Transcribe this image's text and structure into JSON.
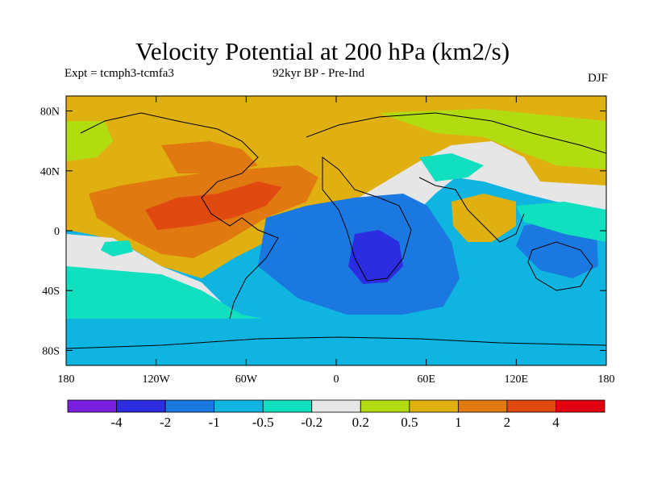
{
  "title": "Velocity Potential at 200 hPa (km2/s)",
  "subtitle_left": "Expt = tcmph3-tcmfa3",
  "subtitle_center": "92kyr BP - Pre-Ind",
  "season": "DJF",
  "map": {
    "projection": "cylindrical-equidistant",
    "lon_range": [
      -180,
      180
    ],
    "lat_range": [
      -90,
      90
    ],
    "lat_ticks": [
      {
        "value": 80,
        "label": "80N"
      },
      {
        "value": 40,
        "label": "40N"
      },
      {
        "value": 0,
        "label": "0"
      },
      {
        "value": -40,
        "label": "40S"
      },
      {
        "value": -80,
        "label": "80S"
      }
    ],
    "lon_ticks": [
      {
        "value": -180,
        "label": "180"
      },
      {
        "value": -120,
        "label": "120W"
      },
      {
        "value": -60,
        "label": "60W"
      },
      {
        "value": 0,
        "label": "0"
      },
      {
        "value": 60,
        "label": "60E"
      },
      {
        "value": 120,
        "label": "120E"
      },
      {
        "value": 180,
        "label": "180"
      }
    ]
  },
  "colorbar": {
    "colors": [
      "#7a1ee0",
      "#2c2ce0",
      "#1a78e0",
      "#10b4e0",
      "#10e0c0",
      "#e6e6e6",
      "#b0dc10",
      "#e0b010",
      "#e07a10",
      "#e04a10",
      "#e00010"
    ],
    "labels": [
      "-4",
      "-2",
      "-1",
      "-0.5",
      "-0.2",
      "0.2",
      "0.5",
      "1",
      "2",
      "4"
    ]
  }
}
